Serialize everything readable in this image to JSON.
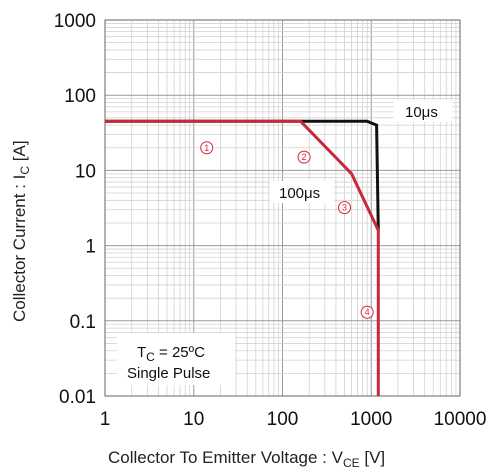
{
  "chart_data": {
    "type": "line",
    "title": "",
    "x_scale": "log",
    "y_scale": "log",
    "xlim": [
      1,
      10000
    ],
    "ylim": [
      0.01,
      1000
    ],
    "grid": true,
    "x_ticks": [
      "1",
      "10",
      "100",
      "1000",
      "10000"
    ],
    "y_ticks": [
      "1000",
      "100",
      "10",
      "1",
      "0.1",
      "0.01"
    ],
    "xlabel": {
      "main": "Collector To Emitter Voltage : V",
      "sub": "CE",
      "unit": " [V]"
    },
    "ylabel": {
      "main": "Collector Current : I",
      "sub": "C",
      "unit": " [A]"
    },
    "series": [
      {
        "label": "10μs",
        "color": "#111111",
        "x": [
          1,
          180,
          900,
          1150,
          1200
        ],
        "y": [
          45,
          45,
          45,
          40,
          1.6
        ]
      },
      {
        "label": "100μs",
        "color": "#c8283c",
        "x": [
          1,
          160,
          600,
          1200,
          1200
        ],
        "y": [
          45,
          45,
          9,
          1.6,
          0.01
        ]
      }
    ],
    "annotations": {
      "conditions_line1_main": "T",
      "conditions_line1_sub": "C",
      "conditions_line1_rest": " = 25ºC",
      "conditions_line2": "Single Pulse"
    },
    "region_markers": [
      {
        "label": "1",
        "x": 14,
        "y": 20
      },
      {
        "label": "2",
        "x": 175,
        "y": 15
      },
      {
        "label": "3",
        "x": 500,
        "y": 3.2
      },
      {
        "label": "4",
        "x": 900,
        "y": 0.13
      }
    ]
  }
}
